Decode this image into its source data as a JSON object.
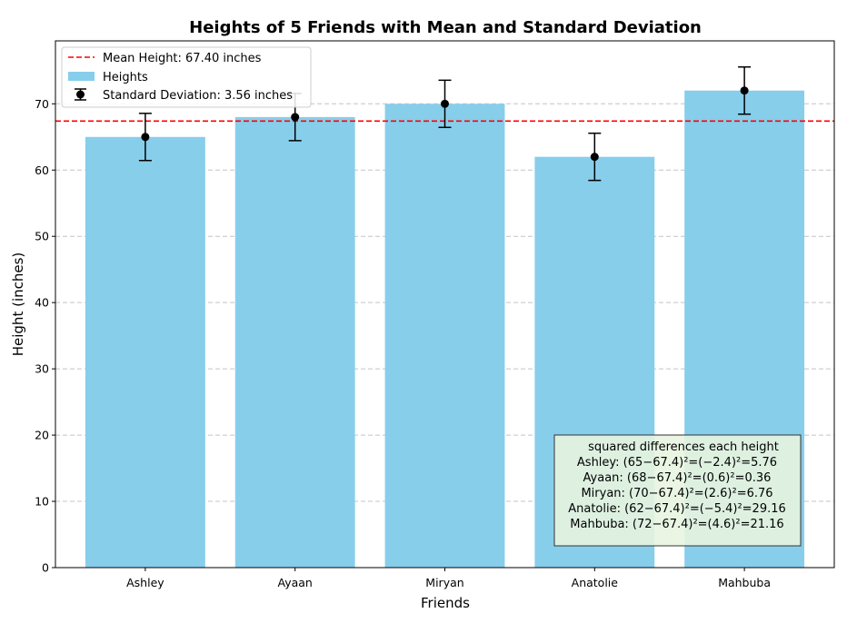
{
  "chart_data": {
    "type": "bar",
    "title": "Heights of 5 Friends with Mean and Standard Deviation",
    "xlabel": "Friends",
    "ylabel": "Height (inches)",
    "ylim": [
      0,
      79.5
    ],
    "yticks": [
      0,
      10,
      20,
      30,
      40,
      50,
      60,
      70
    ],
    "grid": "y-dashed",
    "legend_position": "top-left",
    "categories": [
      "Ashley",
      "Ayaan",
      "Miryan",
      "Anatolie",
      "Mahbuba"
    ],
    "series": [
      {
        "name": "Heights",
        "values": [
          65,
          68,
          70,
          62,
          72
        ],
        "color": "#87ceeb"
      }
    ],
    "error_bars": {
      "name": "Standard Deviation: 3.56 inches",
      "std": 3.56,
      "color": "#000000"
    },
    "mean_line": {
      "name": "Mean Height: 67.40 inches",
      "value": 67.4,
      "color": "#ff0000"
    },
    "annotation": {
      "background": "#e8f5e0",
      "lines": [
        "squared differences  each height",
        "Ashley: (65−67.4)²=(−2.4)²=5.76",
        "Ayaan: (68−67.4)²=(0.6)²=0.36",
        "Miryan: (70−67.4)²=(2.6)²=6.76",
        "Anatolie: (62−67.4)²=(−5.4)²=29.16",
        "Mahbuba: (72−67.4)²=(4.6)²=21.16"
      ]
    }
  }
}
